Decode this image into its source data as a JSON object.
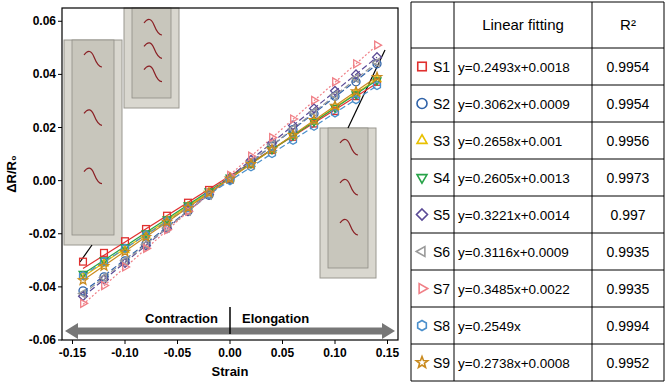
{
  "chart_data": {
    "type": "scatter",
    "x_label": "Strain",
    "y_label": "ΔR/R₀",
    "xlim": [
      -0.16,
      0.16
    ],
    "ylim": [
      -0.06,
      0.065
    ],
    "xticks": [
      {
        "value": -0.15,
        "label": "-0.15"
      },
      {
        "value": -0.1,
        "label": "-0.10"
      },
      {
        "value": -0.05,
        "label": "-0.05"
      },
      {
        "value": 0,
        "label": "0.00"
      },
      {
        "value": 0.05,
        "label": "0.05"
      },
      {
        "value": 0.1,
        "label": "0.10"
      },
      {
        "value": 0.15,
        "label": "0.15"
      }
    ],
    "yticks": [
      {
        "value": -0.06,
        "label": "-0.06"
      },
      {
        "value": -0.04,
        "label": "-0.04"
      },
      {
        "value": -0.02,
        "label": "-0.02"
      },
      {
        "value": 0,
        "label": "0.00"
      },
      {
        "value": 0.02,
        "label": "0.02"
      },
      {
        "value": 0.04,
        "label": "0.04"
      },
      {
        "value": 0.06,
        "label": "0.06"
      }
    ],
    "grid": false,
    "legend": "right",
    "legend_columns": [
      "Linear fitting",
      "R²"
    ],
    "annotations": [
      "Contraction",
      "Elongation"
    ],
    "x": [
      -0.14,
      -0.12,
      -0.1,
      -0.08,
      -0.06,
      -0.04,
      -0.02,
      0,
      0.02,
      0.04,
      0.06,
      0.08,
      0.1,
      0.12,
      0.14
    ],
    "series": [
      {
        "name": "S1",
        "color": "#e0302f",
        "marker": "square",
        "line_style": "solid",
        "values": [
          -0.0305,
          -0.0272,
          -0.0228,
          -0.0182,
          -0.0132,
          -0.0083,
          -0.0035,
          0.0005,
          0.0062,
          0.0115,
          0.0165,
          0.0215,
          0.0262,
          0.0318,
          0.0372
        ],
        "fit": {
          "slope": 0.2493,
          "intercept": 0.0018,
          "equation": "y=0.2493x+0.0018",
          "r2": 0.9954
        }
      },
      {
        "name": "S2",
        "color": "#2f62a8",
        "marker": "circle",
        "line_style": "dash",
        "values": [
          -0.0415,
          -0.0362,
          -0.0302,
          -0.0238,
          -0.0178,
          -0.0115,
          -0.0055,
          0.0005,
          0.0068,
          0.013,
          0.0192,
          0.0252,
          0.0318,
          0.0372,
          0.044
        ],
        "fit": {
          "slope": 0.3062,
          "intercept": 0.0009,
          "equation": "y=0.3062x+0.0009",
          "r2": 0.9954
        }
      },
      {
        "name": "S3",
        "color": "#e8c000",
        "marker": "triangle-up",
        "line_style": "solid",
        "values": [
          -0.036,
          -0.0312,
          -0.0262,
          -0.0208,
          -0.015,
          -0.0098,
          -0.0045,
          0.0008,
          0.0062,
          0.0115,
          0.017,
          0.0222,
          0.0278,
          0.0328,
          0.0382
        ],
        "fit": {
          "slope": 0.2658,
          "intercept": 0.001,
          "equation": "y=0.2658x+0.001",
          "r2": 0.9956
        }
      },
      {
        "name": "S4",
        "color": "#27a348",
        "marker": "triangle-down",
        "line_style": "solid",
        "values": [
          -0.035,
          -0.03,
          -0.025,
          -0.0198,
          -0.0145,
          -0.0092,
          -0.004,
          0.0012,
          0.0065,
          0.0118,
          0.017,
          0.0222,
          0.0275,
          0.0325,
          0.0378
        ],
        "fit": {
          "slope": 0.2605,
          "intercept": 0.0013,
          "equation": "y=0.2605x+0.0013",
          "r2": 0.9973
        }
      },
      {
        "name": "S5",
        "color": "#5a4a96",
        "marker": "diamond",
        "line_style": "dash",
        "values": [
          -0.0435,
          -0.0372,
          -0.031,
          -0.0245,
          -0.018,
          -0.0115,
          -0.0052,
          0.0012,
          0.0078,
          0.0142,
          0.0208,
          0.0272,
          0.0338,
          0.04,
          0.0465
        ],
        "fit": {
          "slope": 0.3221,
          "intercept": 0.0014,
          "equation": "y=0.3221x+0.0014",
          "r2": 0.997
        }
      },
      {
        "name": "S6",
        "color": "#9a9a9a",
        "marker": "triangle-left",
        "line_style": "dash",
        "values": [
          -0.0425,
          -0.0365,
          -0.0302,
          -0.024,
          -0.0178,
          -0.0115,
          -0.0055,
          0.0008,
          0.0072,
          0.0135,
          0.0195,
          0.0258,
          0.0322,
          0.0385,
          0.0445
        ],
        "fit": {
          "slope": 0.3116,
          "intercept": 0.0009,
          "equation": "y=0.3116x+0.0009",
          "r2": 0.9935
        }
      },
      {
        "name": "S7",
        "color": "#f07f86",
        "marker": "triangle-right",
        "line_style": "dot",
        "values": [
          -0.0462,
          -0.0395,
          -0.0325,
          -0.0255,
          -0.0185,
          -0.0115,
          -0.0045,
          0.002,
          0.0092,
          0.0162,
          0.0232,
          0.0302,
          0.0372,
          0.044,
          0.051
        ],
        "fit": {
          "slope": 0.3485,
          "intercept": 0.0022,
          "equation": "y=0.3485x+0.0022",
          "r2": 0.9935
        }
      },
      {
        "name": "S8",
        "color": "#4a8fcc",
        "marker": "hexagon",
        "line_style": "dash",
        "values": [
          -0.0358,
          -0.0305,
          -0.0255,
          -0.0205,
          -0.0152,
          -0.0102,
          -0.0052,
          0,
          0.0052,
          0.0102,
          0.0152,
          0.0205,
          0.0255,
          0.0305,
          0.0358
        ],
        "fit": {
          "slope": 0.2549,
          "intercept": 0,
          "equation": "y=0.2549x",
          "r2": 0.9994
        }
      },
      {
        "name": "S9",
        "color": "#c98a1e",
        "marker": "star",
        "line_style": "solid",
        "values": [
          -0.0375,
          -0.0322,
          -0.0268,
          -0.0212,
          -0.0155,
          -0.0102,
          -0.0046,
          0.0008,
          0.0062,
          0.0118,
          0.0172,
          0.0228,
          0.0282,
          0.0336,
          0.039
        ],
        "fit": {
          "slope": 0.2738,
          "intercept": 0.0008,
          "equation": "y=0.2738x+0.0008",
          "r2": 0.9952
        }
      }
    ]
  }
}
